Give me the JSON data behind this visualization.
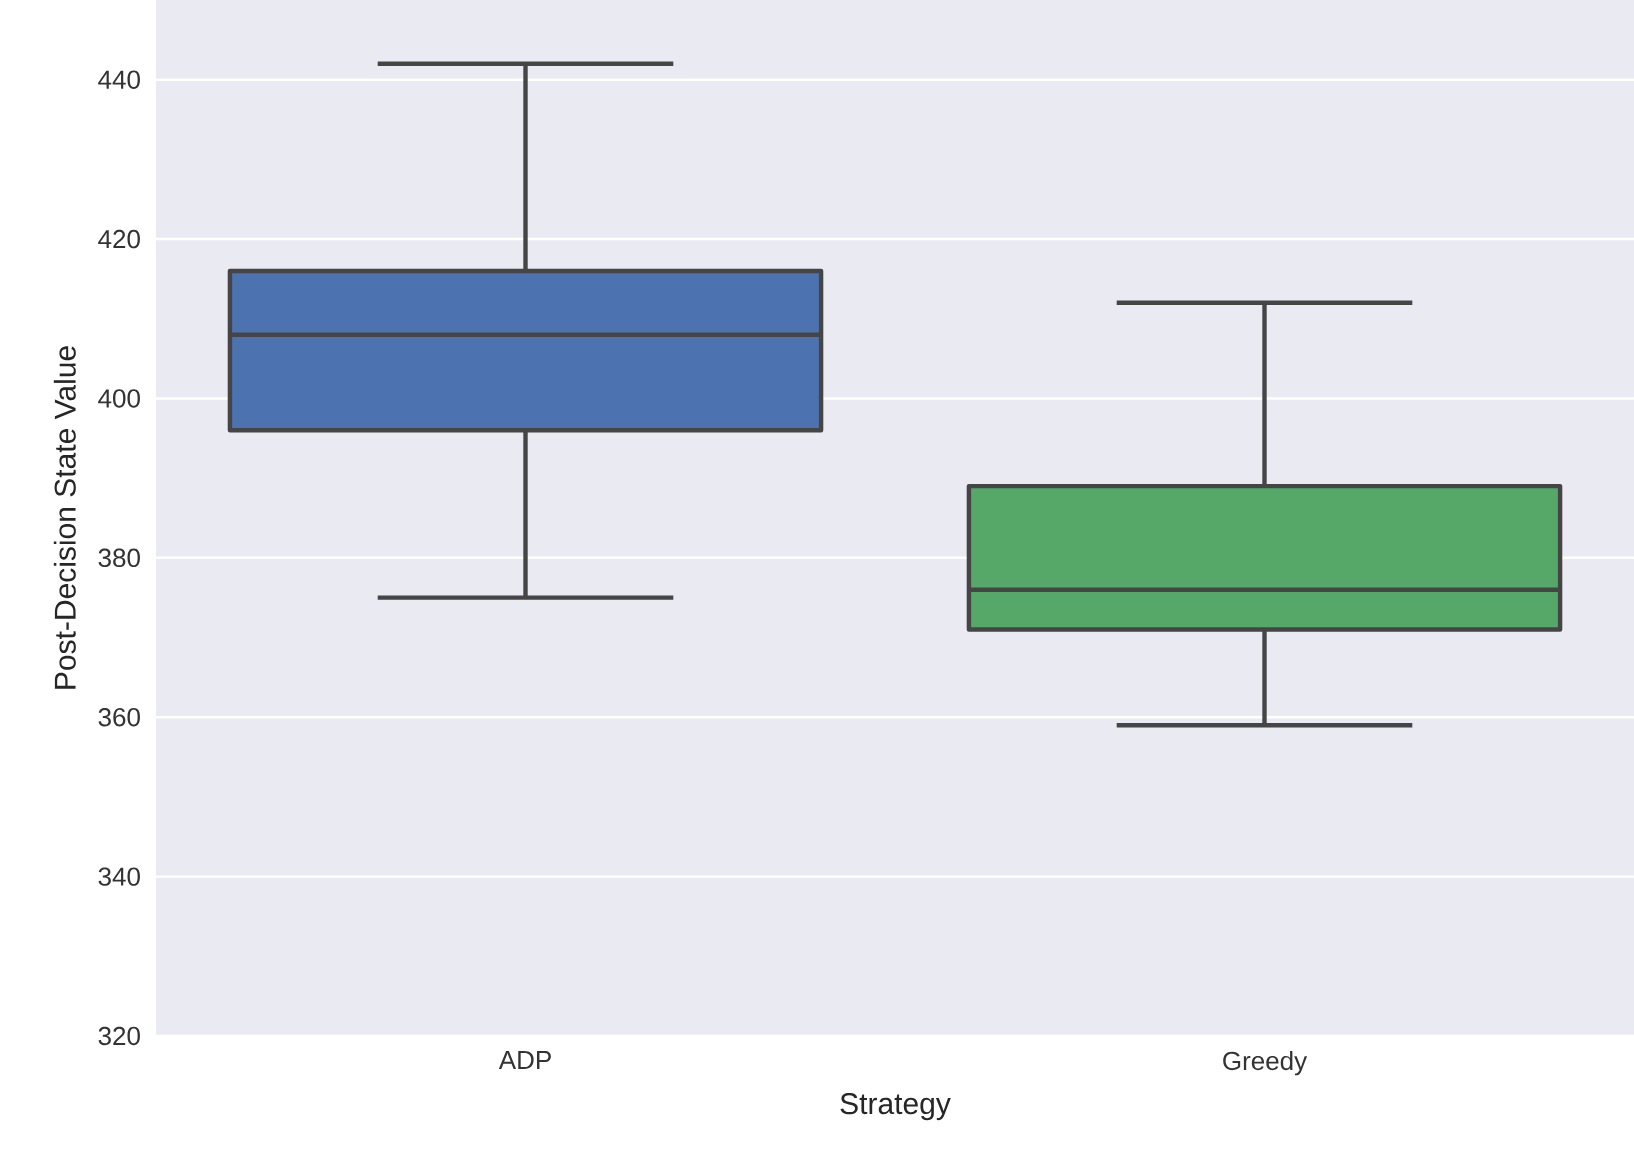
{
  "chart_data": {
    "type": "box",
    "xlabel": "Strategy",
    "ylabel": "Post-Decision State Value",
    "categories": [
      "ADP",
      "Greedy"
    ],
    "boxes": [
      {
        "low": 375,
        "q1": 396,
        "median": 408,
        "q3": 416,
        "high": 442
      },
      {
        "low": 359,
        "q1": 371,
        "median": 376,
        "q3": 389,
        "high": 412
      }
    ],
    "colors": [
      "#4c72b0",
      "#55a868"
    ],
    "ylim": [
      320,
      450
    ],
    "yticks": [
      320,
      340,
      360,
      380,
      400,
      420,
      440
    ],
    "grid": "y"
  }
}
